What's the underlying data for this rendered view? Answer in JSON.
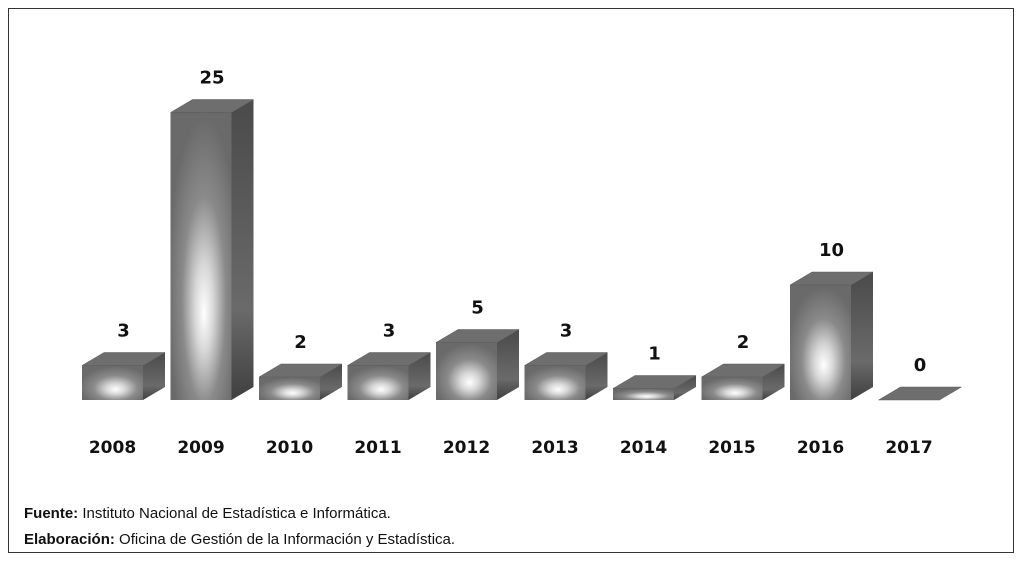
{
  "chart_data": {
    "type": "bar3d",
    "categories": [
      "2008",
      "2009",
      "2010",
      "2011",
      "2012",
      "2013",
      "2014",
      "2015",
      "2016",
      "2017"
    ],
    "values": [
      3,
      25,
      2,
      3,
      5,
      3,
      1,
      2,
      10,
      0
    ],
    "color": "#6e6e6e",
    "footer": [
      {
        "label": "Fuente:",
        "text": "Instituto Nacional de Estadística e Informática."
      },
      {
        "label": "Elaboración:",
        "text": "Oficina de Gestión de la Información y Estadística."
      }
    ]
  }
}
